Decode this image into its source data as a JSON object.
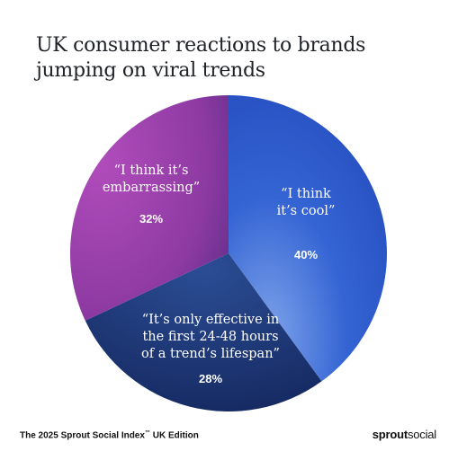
{
  "title": "UK consumer reactions to brands jumping on viral trends",
  "footer": {
    "source": "The 2025 Sprout Social Index",
    "trademark": "™",
    "edition": " UK Edition",
    "brand_bold": "sprout",
    "brand_light": "social"
  },
  "chart_data": {
    "type": "pie",
    "slices": [
      {
        "label": [
          "“I think",
          "it’s cool”"
        ],
        "value": 40,
        "display": "40%",
        "color": "#2f5fd0",
        "color_dark": "#1e3fa8"
      },
      {
        "label": [
          "“It’s only effective in",
          "the first 24-48 hours",
          "of a trend’s lifespan”"
        ],
        "value": 28,
        "display": "28%",
        "color": "#1f3a7a",
        "color_dark": "#142a5f"
      },
      {
        "label": [
          "“I think it’s",
          "embarrassing”"
        ],
        "value": 32,
        "display": "32%",
        "color": "#9b3aa5",
        "color_dark": "#6b2a86"
      }
    ]
  }
}
